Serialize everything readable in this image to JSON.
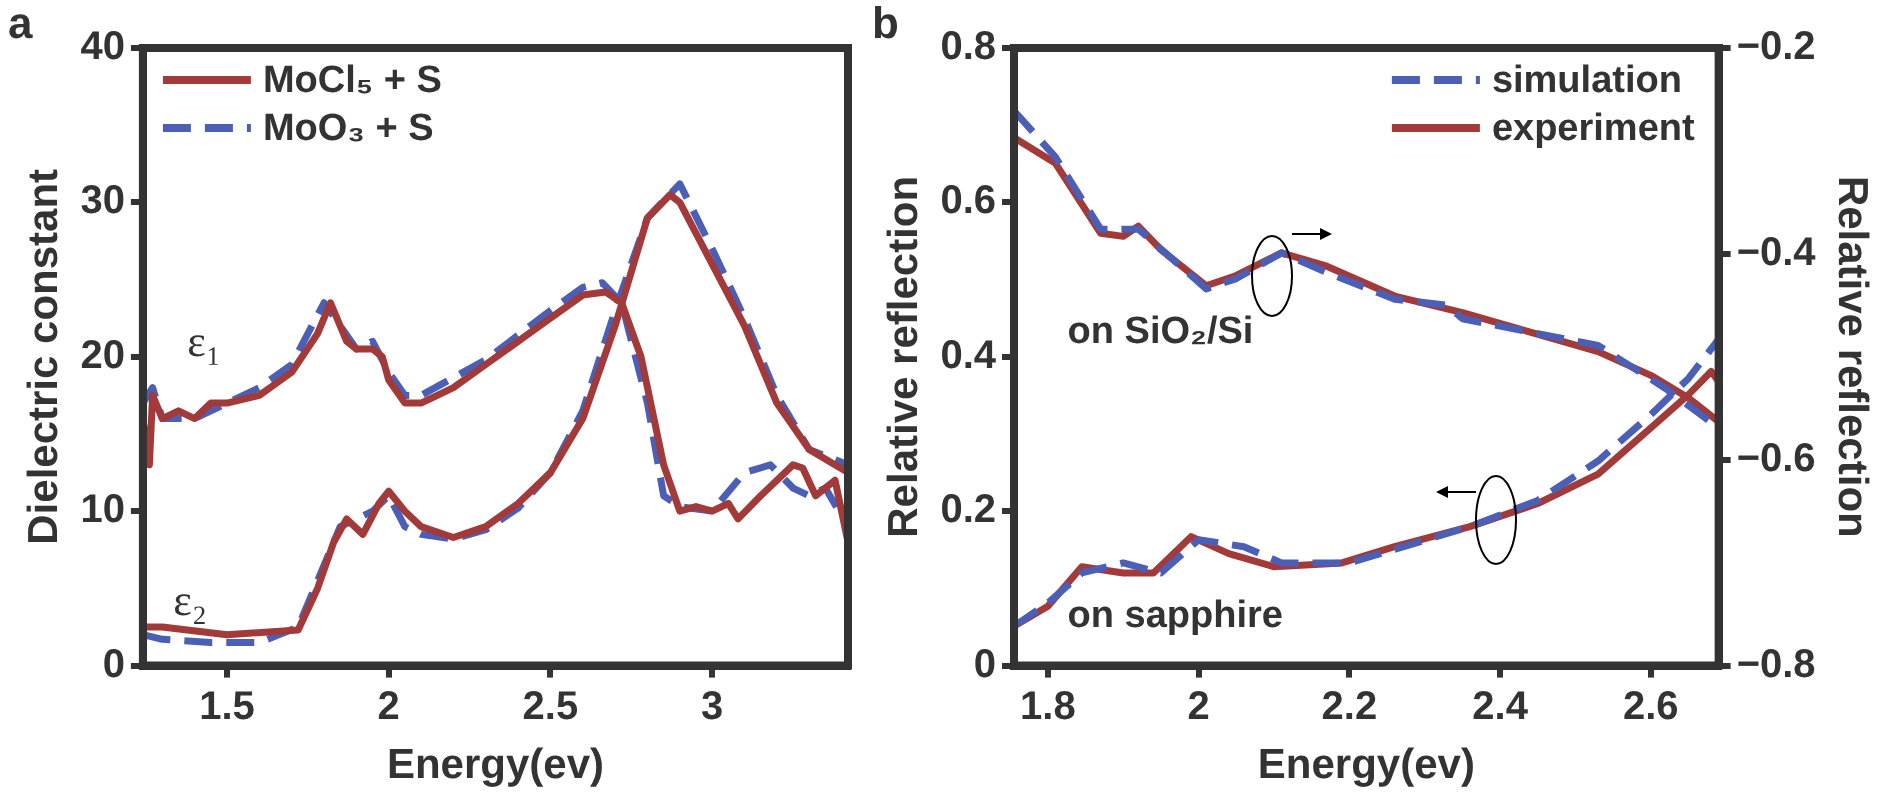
{
  "chart_data": [
    {
      "type": "line",
      "title": "a",
      "xlabel": "Energy(ev)",
      "ylabel": "Dielectric constant",
      "xlim": [
        1.24,
        3.42
      ],
      "xticks": [
        1.5,
        2,
        2.5,
        3
      ],
      "ylim": [
        0,
        40
      ],
      "yticks": [
        0,
        10,
        20,
        30,
        40
      ],
      "legend": "top left",
      "marker": "none",
      "annotations": [
        "ε₁",
        "ε₂"
      ],
      "series": [
        {
          "name": "MoCl₅ + S",
          "color": "#a33a3a",
          "line_style": "solid",
          "x": [
            1.24,
            1.26,
            1.27,
            1.3,
            1.35,
            1.4,
            1.45,
            1.5,
            1.6,
            1.7,
            1.78,
            1.82,
            1.87,
            1.9,
            1.95,
            1.98,
            2.0,
            2.05,
            2.1,
            2.2,
            2.3,
            2.4,
            2.5,
            2.6,
            2.67,
            2.72,
            2.78,
            2.85,
            2.9,
            2.95,
            3.0,
            3.05,
            3.08,
            3.15,
            3.25,
            3.28,
            3.32,
            3.38,
            3.42
          ],
          "values": [
            16,
            13,
            17.5,
            16,
            16.5,
            16,
            17,
            17,
            17.5,
            19,
            21.5,
            23.5,
            21,
            20.5,
            20.5,
            20,
            18.5,
            17,
            17,
            18,
            19.5,
            21,
            22.5,
            24,
            24.2,
            23.5,
            20,
            13,
            10,
            10.3,
            10,
            10.5,
            9.5,
            11,
            13,
            12.8,
            11,
            12,
            8
          ]
        },
        {
          "name": "MoO₃ + S",
          "color": "#4a5fb5",
          "line_style": "dashed",
          "x": [
            1.24,
            1.27,
            1.3,
            1.4,
            1.5,
            1.6,
            1.7,
            1.8,
            1.85,
            1.9,
            1.95,
            2.0,
            2.05,
            2.1,
            2.3,
            2.5,
            2.6,
            2.66,
            2.72,
            2.8,
            2.85,
            2.9,
            3.0,
            3.1,
            3.18,
            3.25,
            3.3,
            3.35,
            3.42
          ],
          "values": [
            17,
            18,
            16,
            16,
            17,
            18,
            19.5,
            23.5,
            22,
            20.5,
            21,
            19,
            17.5,
            17.5,
            19.8,
            23,
            24.5,
            24.8,
            23.5,
            17,
            11,
            10.3,
            10,
            12.5,
            13,
            11.5,
            11,
            11.5,
            9
          ]
        },
        {
          "color": "#a33a3a",
          "line_style": "solid",
          "x": [
            1.24,
            1.3,
            1.5,
            1.72,
            1.78,
            1.83,
            1.87,
            1.92,
            1.97,
            2.0,
            2.05,
            2.1,
            2.2,
            2.3,
            2.4,
            2.5,
            2.6,
            2.7,
            2.8,
            2.87,
            2.9,
            3.0,
            3.1,
            3.2,
            3.3,
            3.42
          ],
          "values": [
            2.5,
            2.5,
            2,
            2.3,
            5,
            8,
            9.5,
            8.5,
            10.5,
            11.3,
            10,
            9,
            8.3,
            9,
            10.5,
            12.5,
            16,
            22,
            29,
            30.5,
            30,
            26,
            22,
            17,
            14,
            12.5
          ]
        },
        {
          "color": "#4a5fb5",
          "line_style": "dashed",
          "x": [
            1.24,
            1.3,
            1.45,
            1.6,
            1.72,
            1.8,
            1.85,
            1.95,
            2.0,
            2.05,
            2.1,
            2.2,
            2.3,
            2.4,
            2.5,
            2.6,
            2.7,
            2.8,
            2.9,
            3.0,
            3.1,
            3.2,
            3.3,
            3.42
          ],
          "values": [
            2,
            1.7,
            1.5,
            1.5,
            2.5,
            6.5,
            9,
            10,
            11,
            9,
            8.5,
            8.2,
            8.8,
            10.2,
            12.5,
            16.5,
            23,
            29,
            31.2,
            27,
            22.5,
            17.5,
            14,
            13
          ]
        }
      ]
    },
    {
      "type": "line",
      "title": "b",
      "xlabel": "Energy(ev)",
      "ylabel": "Relative reflection",
      "y2label": "Relative reflection",
      "xlim": [
        1.755,
        2.69
      ],
      "xticks": [
        1.8,
        2,
        2.2,
        2.4,
        2.6
      ],
      "ylim": [
        0,
        0.8
      ],
      "yticks": [
        0,
        0.2,
        0.4,
        0.6,
        0.8
      ],
      "y2lim": [
        -0.8,
        -0.2
      ],
      "y2ticks": [
        {
          "value": -0.8,
          "label": "−0.8"
        },
        {
          "value": -0.6,
          "label": "−0.6"
        },
        {
          "value": -0.4,
          "label": "−0.4"
        },
        {
          "value": -0.2,
          "label": "−0.2"
        }
      ],
      "legend": "top right",
      "marker": "none",
      "annotations": [
        "on SiO₂/Si",
        "on sapphire"
      ],
      "series": [
        {
          "name": "simulation",
          "color": "#4a5fb5",
          "line_style": "dashed",
          "axis": "y2",
          "x": [
            1.755,
            1.81,
            1.87,
            1.92,
            2.01,
            2.05,
            2.11,
            2.17,
            2.26,
            2.33,
            2.35,
            2.53,
            2.62,
            2.69
          ],
          "values": [
            -0.261,
            -0.306,
            -0.376,
            -0.376,
            -0.434,
            -0.424,
            -0.399,
            -0.418,
            -0.444,
            -0.45,
            -0.463,
            -0.489,
            -0.531,
            -0.569
          ]
        },
        {
          "name": "experiment",
          "color": "#a33a3a",
          "line_style": "solid",
          "axis": "y2",
          "x": [
            1.755,
            1.81,
            1.87,
            1.9,
            1.92,
            1.95,
            2.01,
            2.05,
            2.11,
            2.17,
            2.26,
            2.35,
            2.44,
            2.53,
            2.6,
            2.65,
            2.69
          ],
          "values": [
            -0.287,
            -0.312,
            -0.38,
            -0.383,
            -0.373,
            -0.396,
            -0.431,
            -0.421,
            -0.399,
            -0.412,
            -0.441,
            -0.457,
            -0.476,
            -0.495,
            -0.518,
            -0.54,
            -0.563
          ]
        },
        {
          "color": "#4a5fb5",
          "line_style": "dashed",
          "x": [
            1.755,
            1.8,
            1.845,
            1.9,
            1.95,
            2.0,
            2.06,
            2.11,
            2.2,
            2.36,
            2.45,
            2.53,
            2.6,
            2.65,
            2.69
          ],
          "values": [
            0.051,
            0.081,
            0.12,
            0.133,
            0.12,
            0.163,
            0.154,
            0.133,
            0.133,
            0.18,
            0.214,
            0.265,
            0.325,
            0.372,
            0.423
          ]
        },
        {
          "color": "#a33a3a",
          "line_style": "solid",
          "x": [
            1.755,
            1.8,
            1.845,
            1.9,
            1.94,
            1.99,
            2.04,
            2.1,
            2.19,
            2.26,
            2.36,
            2.45,
            2.53,
            2.6,
            2.65,
            2.68,
            2.69
          ],
          "values": [
            0.051,
            0.077,
            0.128,
            0.12,
            0.12,
            0.167,
            0.145,
            0.128,
            0.133,
            0.154,
            0.18,
            0.21,
            0.248,
            0.308,
            0.351,
            0.381,
            0.368
          ]
        }
      ]
    }
  ]
}
